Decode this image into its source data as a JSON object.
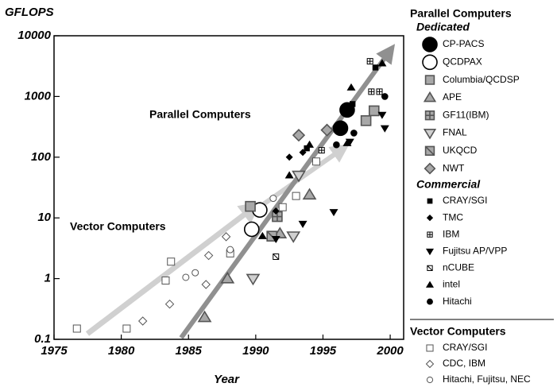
{
  "chart_data": {
    "type": "scatter",
    "ylabel": "GFLOPS",
    "xlabel": "Year",
    "xlim": [
      1975,
      2001
    ],
    "ylim": [
      0.1,
      10000
    ],
    "log_y": true,
    "xticks": [
      1975,
      1980,
      1985,
      1990,
      1995,
      2000
    ],
    "yticks": [
      0.1,
      1,
      10,
      100,
      1000,
      10000
    ],
    "annotations": [
      "Parallel Computers",
      "Vector Computers"
    ],
    "legend_heading": "Parallel Computers",
    "groups": [
      {
        "name": "Dedicated",
        "series": [
          {
            "name": "CP-PACS",
            "marker": "circle",
            "size": 9,
            "color": "#000000",
            "stroke": "#000000",
            "x": [
              1996.3,
              1996.8
            ],
            "y": [
              300,
              600
            ]
          },
          {
            "name": "QCDPAX",
            "marker": "circle",
            "size": 9,
            "color": "#ffffff",
            "stroke": "#000000",
            "x": [
              1989.7,
              1990.3
            ],
            "y": [
              6.5,
              13.5
            ]
          },
          {
            "name": "Columbia/QCDSP",
            "marker": "square",
            "size": 6,
            "color": "#a8a8a8",
            "stroke": "#555555",
            "x": [
              1989.6,
              1998.2,
              1998.8
            ],
            "y": [
              15.5,
              400,
              580
            ]
          },
          {
            "name": "APE",
            "marker": "triangle",
            "size": 6.5,
            "color": "#a8a8a8",
            "stroke": "#555555",
            "x": [
              1986.2,
              1987.9,
              1991.8,
              1994.0
            ],
            "y": [
              0.23,
              1.0,
              5.5,
              24
            ]
          },
          {
            "name": "GF11(IBM)",
            "marker": "square-grid",
            "size": 6,
            "color": "#a8a8a8",
            "stroke": "#555555",
            "x": [
              1991.6
            ],
            "y": [
              10.5
            ]
          },
          {
            "name": "FNAL",
            "marker": "triangle-down",
            "size": 6.5,
            "color": "#d0d0d0",
            "stroke": "#555555",
            "x": [
              1989.8,
              1992.8,
              1993.2
            ],
            "y": [
              1.0,
              5.0,
              50
            ]
          },
          {
            "name": "UKQCD",
            "marker": "square-diag",
            "size": 6,
            "color": "#a8a8a8",
            "stroke": "#555555",
            "x": [
              1991.2
            ],
            "y": [
              5.0
            ]
          },
          {
            "name": "NWT",
            "marker": "diamond",
            "size": 7,
            "color": "#a8a8a8",
            "stroke": "#555555",
            "x": [
              1993.2,
              1995.3
            ],
            "y": [
              230,
              280
            ]
          }
        ]
      },
      {
        "name": "Commercial",
        "series": [
          {
            "name": "CRAY/SGI",
            "marker": "square",
            "size": 3.2,
            "color": "#000000",
            "stroke": "#000000",
            "x": [
              1993.8,
              1997.2,
              1998.9
            ],
            "y": [
              140,
              750,
              3000
            ]
          },
          {
            "name": "TMC",
            "marker": "diamond",
            "size": 3.8,
            "color": "#000000",
            "stroke": "#000000",
            "x": [
              1991.5,
              1992.5,
              1993.5
            ],
            "y": [
              13,
              100,
              120
            ]
          },
          {
            "name": "IBM",
            "marker": "square-grid",
            "size": 3.5,
            "color": "#ffffff",
            "stroke": "#000000",
            "x": [
              1994.9,
              1998.5,
              1998.6,
              1999.2
            ],
            "y": [
              130,
              3800,
              1200,
              1200
            ]
          },
          {
            "name": "Fujitsu AP/VPP",
            "marker": "triangle-down",
            "size": 4,
            "color": "#000000",
            "stroke": "#000000",
            "x": [
              1991.5,
              1993.5,
              1995.8,
              1997.0,
              1999.4,
              1999.6
            ],
            "y": [
              4.5,
              8,
              12.5,
              180,
              500,
              300
            ]
          },
          {
            "name": "nCUBE",
            "marker": "square-diag",
            "size": 3.5,
            "color": "#ffffff",
            "stroke": "#000000",
            "x": [
              1991.5
            ],
            "y": [
              2.3
            ]
          },
          {
            "name": "intel",
            "marker": "triangle",
            "size": 4,
            "color": "#000000",
            "stroke": "#000000",
            "x": [
              1990.5,
              1992.5,
              1994.0,
              1996.8,
              1997.1,
              1999.4
            ],
            "y": [
              5,
              50,
              160,
              170,
              1400,
              3500
            ]
          },
          {
            "name": "Hitachi",
            "marker": "circle",
            "size": 3.8,
            "color": "#000000",
            "stroke": "#000000",
            "x": [
              1996.0,
              1997.3,
              1999.6
            ],
            "y": [
              160,
              250,
              1000
            ]
          }
        ]
      },
      {
        "name": "Vector Computers",
        "series": [
          {
            "name": "CRAY/SGI",
            "marker": "square",
            "size": 4.5,
            "color": "#ffffff",
            "stroke": "#555555",
            "x": [
              1976.7,
              1980.4,
              1983.7,
              1983.3,
              1988.1,
              1993.0,
              1994.5,
              1992.0
            ],
            "y": [
              0.15,
              0.15,
              1.9,
              0.93,
              2.6,
              23,
              85,
              15
            ]
          },
          {
            "name": "CDC, IBM",
            "marker": "diamond",
            "size": 5,
            "color": "#ffffff",
            "stroke": "#555555",
            "x": [
              1981.6,
              1983.6,
              1986.3,
              1986.5,
              1987.8
            ],
            "y": [
              0.2,
              0.38,
              0.8,
              2.4,
              4.9
            ]
          },
          {
            "name": "Hitachi, Fujitsu, NEC",
            "marker": "circle",
            "size": 4,
            "color": "#ffffff",
            "stroke": "#555555",
            "x": [
              1984.8,
              1985.5,
              1988.1,
              1991.3
            ],
            "y": [
              1.05,
              1.25,
              3.0,
              21
            ]
          }
        ]
      }
    ]
  }
}
